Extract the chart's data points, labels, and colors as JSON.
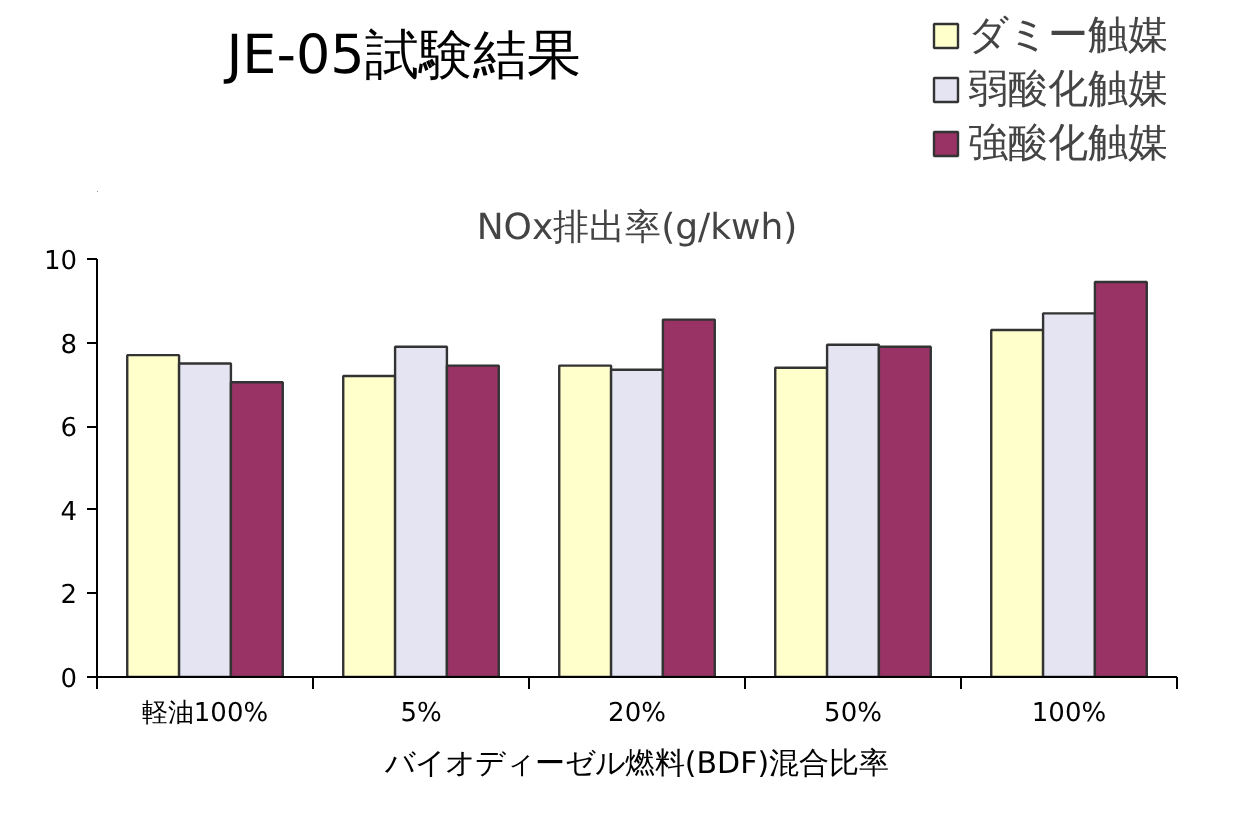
{
  "chart_data": {
    "type": "bar",
    "title": "JE-05試験結果",
    "subtitle": "NOx排出率(g/kwh)",
    "xlabel": "バイオディーゼル燃料(BDF)混合比率",
    "categories": [
      "軽油100%",
      "5%",
      "20%",
      "50%",
      "100%"
    ],
    "series": [
      {
        "name": "ダミー触媒",
        "color": "#ffffcc",
        "values": [
          7.7,
          7.2,
          7.45,
          7.4,
          8.3
        ]
      },
      {
        "name": "弱酸化触媒",
        "color": "#e4e4f2",
        "values": [
          7.5,
          7.9,
          7.35,
          7.95,
          8.7
        ]
      },
      {
        "name": "強酸化触媒",
        "color": "#993366",
        "values": [
          7.05,
          7.45,
          8.55,
          7.9,
          9.45
        ]
      }
    ],
    "ylim": [
      0,
      10
    ],
    "yticks": [
      0,
      2,
      4,
      6,
      8,
      10
    ],
    "grid": false,
    "legend": "top right"
  }
}
